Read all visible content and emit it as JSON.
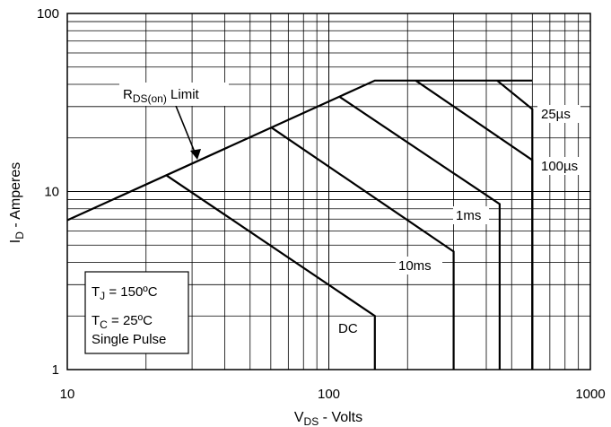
{
  "chart_data": {
    "type": "line",
    "x_scale": "log",
    "y_scale": "log",
    "xlim": [
      10,
      1000
    ],
    "ylim": [
      1,
      100
    ],
    "grid": true,
    "xlabel": {
      "main": "V",
      "sub": "DS",
      "rest": " - Volts"
    },
    "ylabel": {
      "main": "I",
      "sub": "D",
      "rest": " - Amperes"
    },
    "x_ticks": [
      {
        "value": 10,
        "label": "10"
      },
      {
        "value": 100,
        "label": "100"
      },
      {
        "value": 1000,
        "label": "1000"
      }
    ],
    "y_ticks": [
      {
        "value": 1,
        "label": "1"
      },
      {
        "value": 10,
        "label": "10"
      },
      {
        "value": 100,
        "label": "100"
      }
    ],
    "series": [
      {
        "name": "RDS(on) Limit",
        "points": [
          [
            10,
            6.9
          ],
          [
            150,
            42
          ],
          [
            600,
            42
          ]
        ]
      },
      {
        "name": "25µs",
        "points": [
          [
            440,
            42
          ],
          [
            600,
            29
          ],
          [
            600,
            1
          ]
        ]
      },
      {
        "name": "100µs",
        "points": [
          [
            215,
            42
          ],
          [
            600,
            15
          ],
          [
            600,
            1
          ]
        ]
      },
      {
        "name": "1ms",
        "points": [
          [
            110,
            34
          ],
          [
            450,
            8.5
          ],
          [
            450,
            1
          ]
        ]
      },
      {
        "name": "10ms",
        "points": [
          [
            60,
            23
          ],
          [
            300,
            4.6
          ],
          [
            300,
            1
          ]
        ]
      },
      {
        "name": "DC",
        "points": [
          [
            24,
            12.3
          ],
          [
            150,
            2.0
          ],
          [
            150,
            1
          ]
        ]
      }
    ],
    "annotations": {
      "rds_limit": {
        "main": "R",
        "sub": "DS(on)",
        "rest": " Limit"
      },
      "label_25us": "25µs",
      "label_100us": "100µs",
      "label_1ms": "1ms",
      "label_10ms": "10ms",
      "label_dc": "DC"
    },
    "conditions": {
      "tj": {
        "main": "T",
        "sub": "J",
        "rest": " = 150ºC"
      },
      "tc": {
        "main": "T",
        "sub": "C",
        "rest": " = 25ºC"
      },
      "pulse": "Single Pulse"
    },
    "colors": {
      "line": "#000000",
      "grid": "#000000",
      "background": "#ffffff"
    }
  }
}
